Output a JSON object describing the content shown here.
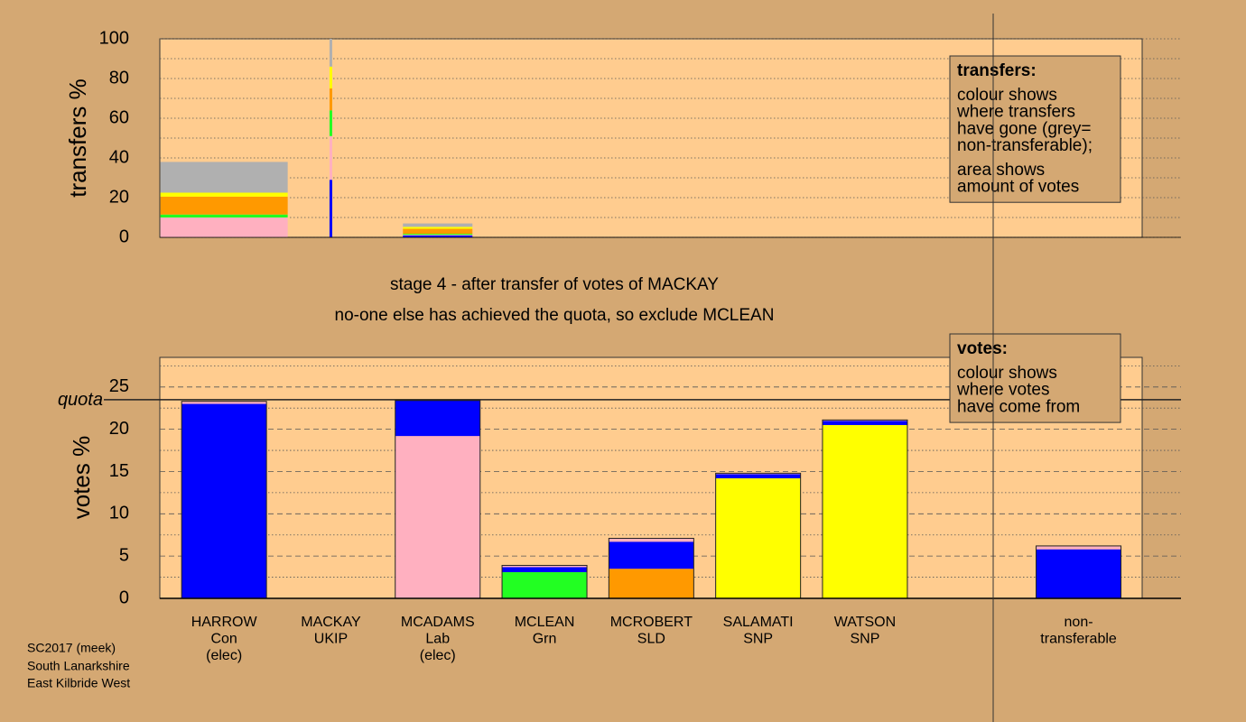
{
  "chart_data": [
    {
      "type": "stacked_bar",
      "ylabel": "transfers %",
      "ylim": [
        0,
        100
      ],
      "yticks": [
        0,
        20,
        40,
        60,
        80,
        100
      ],
      "minor_grid": [
        10,
        30,
        50,
        70,
        90
      ],
      "series": [
        {
          "color": "#0000ff",
          "values": [
            0,
            29,
            1
          ]
        },
        {
          "color": "#ffb0c0",
          "values": [
            10,
            22,
            0.3
          ]
        },
        {
          "color": "#22ff22",
          "values": [
            1.5,
            13,
            0.5
          ]
        },
        {
          "color": "#ff9900",
          "values": [
            9,
            11,
            2.5
          ]
        },
        {
          "color": "#ffff00",
          "values": [
            2,
            11,
            1
          ]
        },
        {
          "color": "#b0b0b0",
          "values": [
            15.5,
            14,
            1.7
          ]
        }
      ],
      "legend": {
        "title": "transfers:",
        "paragraphs": [
          [
            "colour shows",
            "where transfers",
            "have gone (grey=",
            "non-transferable);"
          ],
          [
            "area shows",
            "amount of votes"
          ]
        ]
      }
    },
    {
      "type": "stacked_bar",
      "ylabel": "votes %",
      "categories": [
        [
          "HARROW",
          "Con",
          "(elec)"
        ],
        [
          "MACKAY",
          "UKIP"
        ],
        [
          "MCADAMS",
          "Lab",
          "(elec)"
        ],
        [
          "MCLEAN",
          "Grn"
        ],
        [
          "MCROBERT",
          "SLD"
        ],
        [
          "SALAMATI",
          "SNP"
        ],
        [
          "WATSON",
          "SNP"
        ],
        null,
        [
          "non-",
          "transferable"
        ]
      ],
      "ylim": [
        0,
        28.5
      ],
      "yticks": [
        0,
        5,
        10,
        15,
        20,
        25
      ],
      "minor_grid": [
        2.5,
        7.5,
        12.5,
        17.5,
        22.5,
        27.5
      ],
      "quota": {
        "label": "quota",
        "value": 23.5
      },
      "series": [
        {
          "color": "#22ff22",
          "values": [
            0,
            0,
            0,
            3.1,
            0,
            0,
            0,
            null,
            0
          ]
        },
        {
          "color": "#ff9900",
          "values": [
            0,
            0,
            0,
            0,
            3.5,
            0,
            0,
            null,
            0
          ]
        },
        {
          "color": "#ffff00",
          "values": [
            0,
            0,
            0,
            0,
            0,
            14.2,
            20.5,
            null,
            0
          ]
        },
        {
          "color": "#ffb0c0",
          "values": [
            0,
            0,
            19.2,
            0,
            0,
            0,
            0,
            null,
            0
          ]
        },
        {
          "color": "#0000ff",
          "values": [
            23.0,
            0,
            4.2,
            0.6,
            3.2,
            0.5,
            0.5,
            null,
            5.8
          ]
        },
        {
          "color": "#ffb0c0",
          "values": [
            0.3,
            0,
            0,
            0.2,
            0.4,
            0.1,
            0.1,
            null,
            0.4
          ]
        }
      ],
      "legend": {
        "title": "votes:",
        "paragraphs": [
          [
            "colour shows",
            "where votes",
            "have come from"
          ]
        ]
      }
    }
  ],
  "notes": [
    "stage 4 - after transfer of votes of MACKAY",
    "no-one else has achieved the quota, so exclude MCLEAN"
  ],
  "footer": [
    "SC2017 (meek)",
    "South Lanarkshire",
    "East Kilbride West"
  ]
}
